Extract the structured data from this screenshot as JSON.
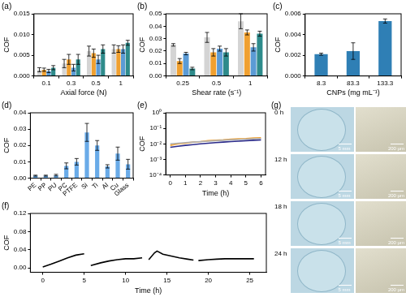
{
  "chart_data": [
    {
      "type": "bar",
      "title": "(a)",
      "x_label": "Axial force (N)",
      "y_label": "COF",
      "categories": [
        "0.1",
        "0.3",
        "0.5",
        "1"
      ],
      "series": [
        {
          "color": "#d4d4d4",
          "values": [
            0.0015,
            0.003,
            0.006,
            0.0065
          ],
          "errors": [
            0.0005,
            0.001,
            0.0012,
            0.001
          ]
        },
        {
          "color": "#f0a030",
          "values": [
            0.0015,
            0.004,
            0.0055,
            0.0065
          ],
          "errors": [
            0.0004,
            0.0012,
            0.001,
            0.0008
          ]
        },
        {
          "color": "#5b9bd5",
          "values": [
            0.0012,
            0.002,
            0.004,
            0.0065
          ],
          "errors": [
            0.0004,
            0.0008,
            0.001,
            0.001
          ]
        },
        {
          "color": "#2e8b8b",
          "values": [
            0.002,
            0.004,
            0.0065,
            0.008
          ],
          "errors": [
            0.0005,
            0.0012,
            0.001,
            0.0006
          ]
        }
      ],
      "ylim": [
        0,
        0.015
      ],
      "yticks": [
        {
          "value": 0,
          "label": "0.000"
        },
        0.005,
        {
          "value": 0.01,
          "label": "0.010"
        },
        0.015
      ],
      "grid": false
    },
    {
      "type": "bar",
      "title": "(b)",
      "x_label": "Shear rate (s⁻¹)",
      "y_label": "COF",
      "categories": [
        "0.25",
        "0.5",
        "1"
      ],
      "series": [
        {
          "color": "#d4d4d4",
          "values": [
            0.025,
            0.031,
            0.044
          ],
          "errors": [
            0.001,
            0.004,
            0.006
          ]
        },
        {
          "color": "#f0a030",
          "values": [
            0.012,
            0.019,
            0.035
          ],
          "errors": [
            0.002,
            0.003,
            0.002
          ]
        },
        {
          "color": "#5b9bd5",
          "values": [
            0.018,
            0.022,
            0.023
          ],
          "errors": [
            0.001,
            0.002,
            0.003
          ]
        },
        {
          "color": "#2e8b8b",
          "values": [
            0.006,
            0.019,
            0.034
          ],
          "errors": [
            0.001,
            0.003,
            0.002
          ]
        }
      ],
      "ylim": [
        0,
        0.05
      ],
      "yticks": [
        {
          "value": 0,
          "label": "0.00"
        },
        0.01,
        0.02,
        0.03,
        0.04,
        0.05
      ],
      "grid": false
    },
    {
      "type": "bar",
      "title": "(c)",
      "x_label": "CNPs (mg mL⁻¹)",
      "y_label": "COF",
      "categories": [
        "8.3",
        "83.3",
        "133.3"
      ],
      "color": "#2f7fb5",
      "values": [
        0.0021,
        0.0024,
        0.0053
      ],
      "errors": [
        0.0001,
        0.0008,
        0.0002
      ],
      "ylim": [
        0,
        0.006
      ],
      "yticks": [
        {
          "value": 0,
          "label": "0.000"
        },
        0.002,
        0.004,
        0.006
      ],
      "grid": false
    },
    {
      "type": "bar",
      "title": "(d)",
      "y_label": "COF",
      "categories": [
        "PE",
        "PP",
        "PU",
        "PC",
        "PTFE",
        "Si",
        "Ti",
        "Al",
        "Cu",
        "Glass"
      ],
      "color": "#6aabe8",
      "values": [
        0.0015,
        0.0015,
        0.0018,
        0.0075,
        0.01,
        0.028,
        0.02,
        0.0072,
        0.015,
        0.0085
      ],
      "errors": [
        0.0003,
        0.0003,
        0.0005,
        0.0018,
        0.002,
        0.0055,
        0.003,
        0.001,
        0.004,
        0.003
      ],
      "ylim": [
        0,
        0.04
      ],
      "yticks": [
        {
          "value": 0,
          "label": "0.00"
        },
        0.01,
        0.02,
        0.03,
        0.04
      ],
      "grid": false
    },
    {
      "type": "line",
      "title": "(e)",
      "x_label": "Time (h)",
      "y_label": "COF",
      "log": "y",
      "x": [
        0,
        0.5,
        1,
        1.5,
        2,
        2.5,
        3,
        3.5,
        4,
        4.5,
        5,
        5.5,
        6
      ],
      "series": [
        {
          "color": "#b0b0b0",
          "values": [
            0.01,
            0.011,
            0.012,
            0.013,
            0.014,
            0.015,
            0.016,
            0.017,
            0.018,
            0.019,
            0.02,
            0.021,
            0.022
          ]
        },
        {
          "color": "#f0a030",
          "values": [
            0.008,
            0.01,
            0.011,
            0.013,
            0.014,
            0.016,
            0.017,
            0.018,
            0.02,
            0.021,
            0.022,
            0.024,
            0.025
          ]
        },
        {
          "color": "#2a2a8a",
          "values": [
            0.006,
            0.007,
            0.008,
            0.009,
            0.01,
            0.011,
            0.012,
            0.013,
            0.014,
            0.015,
            0.016,
            0.017,
            0.018
          ]
        }
      ],
      "xlim": [
        -0.3,
        6.3
      ],
      "xticks": [
        0,
        1,
        2,
        3,
        4,
        5,
        6
      ],
      "ylim": [
        0.0001,
        1
      ],
      "yticks": [
        {
          "value": 0.0001,
          "label": "10⁻⁴"
        },
        {
          "value": 0.001,
          "label": "10⁻³"
        },
        {
          "value": 0.01,
          "label": "10⁻²"
        },
        {
          "value": 0.1,
          "label": "10⁻¹"
        },
        {
          "value": 1,
          "label": "10⁰"
        }
      ],
      "grid": false
    },
    {
      "type": "line",
      "title": "(f)",
      "x_label": "Time (h)",
      "y_label": "COF",
      "x": [
        0,
        1,
        2,
        3,
        4,
        5,
        5.4,
        5.8,
        7,
        8,
        9,
        10,
        11,
        12,
        12.4,
        12.8,
        13.5,
        13.8,
        14.5,
        15.5,
        16.5,
        17.5,
        18.2,
        18.5,
        18.8,
        20,
        21,
        22,
        23,
        24,
        25,
        25.5
      ],
      "series": [
        {
          "color": "#000000",
          "values": [
            0.002,
            0.008,
            0.015,
            0.022,
            0.028,
            0.031,
            null,
            0.005,
            0.011,
            0.015,
            0.018,
            0.02,
            0.02,
            0.022,
            null,
            0.018,
            0.033,
            0.037,
            0.03,
            0.026,
            0.022,
            0.019,
            0.017,
            null,
            0.016,
            0.018,
            0.019,
            0.02,
            0.02,
            0.02,
            0.02,
            0.02
          ]
        }
      ],
      "xlim": [
        -1.5,
        27
      ],
      "xticks": [
        0,
        5,
        10,
        15,
        20,
        25
      ],
      "ylim": [
        -0.01,
        0.12
      ],
      "yticks": [
        {
          "value": 0,
          "label": "0.00"
        },
        0.04,
        0.08,
        0.12
      ],
      "grid": false
    }
  ],
  "panel_g": {
    "label": "(g)",
    "rows": [
      {
        "time": "0 h",
        "scale_bars": [
          "5 mm",
          "200 µm"
        ]
      },
      {
        "time": "12 h",
        "scale_bars": [
          "5 mm",
          "200 µm"
        ]
      },
      {
        "time": "18 h",
        "scale_bars": [
          "5 mm",
          "200 µm"
        ]
      },
      {
        "time": "24 h",
        "scale_bars": [
          "5 mm",
          "200 µm"
        ]
      }
    ]
  }
}
